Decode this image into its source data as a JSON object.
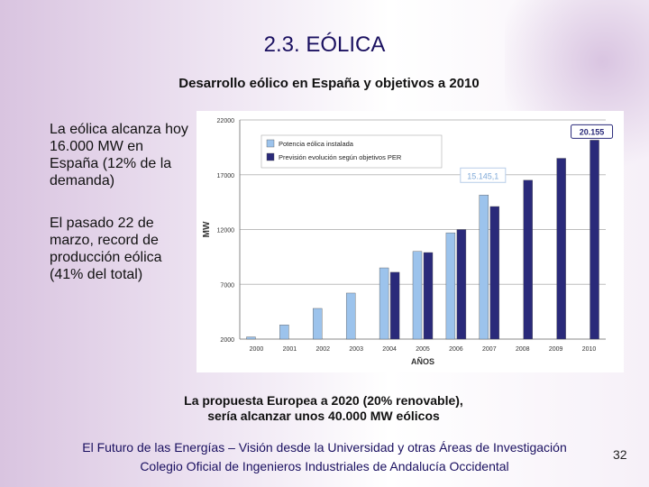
{
  "slide": {
    "title": "2.3. EÓLICA",
    "subtitle": "Desarrollo eólico en España y objetivos a 2010",
    "bullet1": "La eólica alcanza hoy 16.000 MW en España (12% de la demanda)",
    "bullet2": "El pasado 22 de marzo, record de producción eólica (41% del total)",
    "caption_line1": "La propuesta Europea a 2020 (20% renovable),",
    "caption_line2": "sería alcanzar unos 40.000 MW eólicos",
    "footer_line1": "El Futuro de las Energías – Visión desde la Universidad y otras Áreas de Investigación",
    "footer_line2": "Colegio Oficial de Ingenieros Industriales de Andalucía Occidental",
    "page_number": "32"
  },
  "chart_data": {
    "type": "bar",
    "title": "",
    "xlabel": "AÑOS",
    "ylabel": "MW",
    "ylim": [
      2000,
      22000
    ],
    "yticks": [
      "2000",
      "7000",
      "12000",
      "17000",
      "22000"
    ],
    "categories": [
      "2000",
      "2001",
      "2002",
      "2003",
      "2004",
      "2005",
      "2006",
      "2007",
      "2008",
      "2009",
      "2010"
    ],
    "series": [
      {
        "name": "Potencia eólica instalada",
        "color": "#9cc3ec",
        "values": [
          2200,
          3300,
          4800,
          6200,
          8500,
          10000,
          11700,
          15145,
          null,
          null,
          null
        ]
      },
      {
        "name": "Previsión evolución según objetivos PER",
        "color": "#2a2a7a",
        "values": [
          null,
          null,
          null,
          null,
          8100,
          9900,
          12000,
          14100,
          16500,
          18500,
          20155
        ]
      }
    ],
    "annotations": [
      "15.145,1",
      "20.155"
    ],
    "legend": "top-left"
  }
}
